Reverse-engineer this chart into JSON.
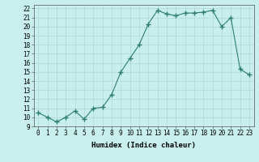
{
  "x": [
    0,
    1,
    2,
    3,
    4,
    5,
    6,
    7,
    8,
    9,
    10,
    11,
    12,
    13,
    14,
    15,
    16,
    17,
    18,
    19,
    20,
    21,
    22,
    23
  ],
  "y": [
    10.5,
    10.0,
    9.5,
    10.0,
    10.7,
    9.8,
    11.0,
    11.1,
    12.5,
    15.0,
    16.5,
    18.0,
    20.3,
    21.8,
    21.4,
    21.2,
    21.5,
    21.5,
    21.6,
    21.8,
    20.0,
    21.0,
    15.3,
    14.7
  ],
  "line_color": "#2d7d74",
  "marker_color": "#2d7d74",
  "bg_color": "#c8eeee",
  "grid_color": "#b0d8d8",
  "xlabel": "Humidex (Indice chaleur)",
  "xlim": [
    -0.5,
    23.5
  ],
  "ylim": [
    9,
    22.4
  ],
  "yticks": [
    9,
    10,
    11,
    12,
    13,
    14,
    15,
    16,
    17,
    18,
    19,
    20,
    21,
    22
  ],
  "xticks": [
    0,
    1,
    2,
    3,
    4,
    5,
    6,
    7,
    8,
    9,
    10,
    11,
    12,
    13,
    14,
    15,
    16,
    17,
    18,
    19,
    20,
    21,
    22,
    23
  ],
  "tick_fontsize": 5.5,
  "label_fontsize": 6.5
}
